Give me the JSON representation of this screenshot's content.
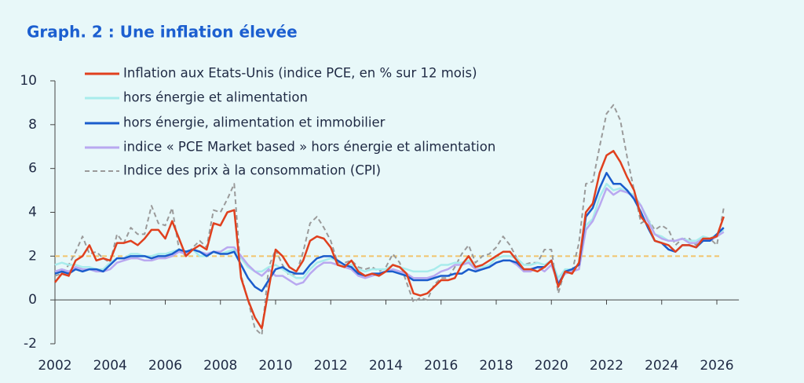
{
  "chart_data": {
    "type": "line",
    "title": "Graph. 2 : Une inflation élevée",
    "x": [
      2002,
      2002.25,
      2002.5,
      2002.75,
      2003,
      2003.25,
      2003.5,
      2003.75,
      2004,
      2004.25,
      2004.5,
      2004.75,
      2005,
      2005.25,
      2005.5,
      2005.75,
      2006,
      2006.25,
      2006.5,
      2006.75,
      2007,
      2007.25,
      2007.5,
      2007.75,
      2008,
      2008.25,
      2008.5,
      2008.75,
      2009,
      2009.25,
      2009.5,
      2009.75,
      2010,
      2010.25,
      2010.5,
      2010.75,
      2011,
      2011.25,
      2011.5,
      2011.75,
      2012,
      2012.25,
      2012.5,
      2012.75,
      2013,
      2013.25,
      2013.5,
      2013.75,
      2014,
      2014.25,
      2014.5,
      2014.75,
      2015,
      2015.25,
      2015.5,
      2015.75,
      2016,
      2016.25,
      2016.5,
      2016.75,
      2017,
      2017.25,
      2017.5,
      2017.75,
      2018,
      2018.25,
      2018.5,
      2018.75,
      2019,
      2019.25,
      2019.5,
      2019.75,
      2020,
      2020.25,
      2020.5,
      2020.75,
      2021,
      2021.25,
      2021.5,
      2021.75,
      2022,
      2022.25,
      2022.5,
      2022.75,
      2023,
      2023.25,
      2023.5,
      2023.75,
      2024,
      2024.25,
      2024.5,
      2024.75,
      2025,
      2025.25,
      2025.5,
      2025.75,
      2026,
      2026.25
    ],
    "series": [
      {
        "name": "Inflation aux Etats-Unis (indice PCE, en % sur 12 mois)",
        "color": "#e0401e",
        "width": 2.5,
        "values": [
          0.8,
          1.2,
          1.1,
          1.8,
          2.0,
          2.5,
          1.8,
          1.9,
          1.8,
          2.6,
          2.6,
          2.7,
          2.5,
          2.8,
          3.2,
          3.2,
          2.8,
          3.6,
          2.8,
          2.0,
          2.3,
          2.5,
          2.3,
          3.5,
          3.4,
          4.0,
          4.1,
          1.0,
          0.0,
          -0.8,
          -1.3,
          0.5,
          2.3,
          2.0,
          1.5,
          1.3,
          1.8,
          2.7,
          2.9,
          2.8,
          2.4,
          1.6,
          1.5,
          1.8,
          1.3,
          1.1,
          1.2,
          1.1,
          1.3,
          1.6,
          1.5,
          1.2,
          0.3,
          0.2,
          0.3,
          0.6,
          0.9,
          0.9,
          1.0,
          1.6,
          2.0,
          1.5,
          1.6,
          1.8,
          2.0,
          2.2,
          2.2,
          1.8,
          1.4,
          1.4,
          1.3,
          1.5,
          1.8,
          0.6,
          1.3,
          1.2,
          1.7,
          4.0,
          4.4,
          5.8,
          6.6,
          6.8,
          6.3,
          5.6,
          5.0,
          3.8,
          3.4,
          2.7,
          2.6,
          2.5,
          2.2,
          2.5,
          2.5,
          2.4,
          2.8,
          2.8,
          2.9,
          3.8
        ]
      },
      {
        "name": "hors énergie et alimentation",
        "color": "#a8ecec",
        "width": 2.5,
        "values": [
          1.6,
          1.7,
          1.6,
          1.6,
          1.5,
          1.5,
          1.4,
          1.4,
          1.7,
          1.9,
          1.9,
          2.1,
          2.1,
          2.0,
          2.0,
          2.1,
          2.1,
          2.2,
          2.3,
          2.2,
          2.3,
          2.0,
          2.0,
          2.2,
          2.1,
          2.2,
          2.3,
          1.9,
          1.5,
          1.3,
          1.3,
          1.5,
          1.6,
          1.4,
          1.2,
          1.0,
          1.0,
          1.4,
          1.7,
          1.8,
          1.9,
          1.8,
          1.6,
          1.6,
          1.4,
          1.3,
          1.4,
          1.4,
          1.4,
          1.6,
          1.5,
          1.4,
          1.3,
          1.3,
          1.3,
          1.4,
          1.6,
          1.6,
          1.7,
          1.7,
          1.8,
          1.5,
          1.5,
          1.6,
          1.9,
          2.0,
          2.0,
          1.9,
          1.6,
          1.6,
          1.7,
          1.6,
          1.8,
          1.0,
          1.4,
          1.4,
          1.6,
          3.4,
          3.7,
          4.7,
          5.3,
          5.0,
          5.1,
          4.9,
          4.8,
          4.3,
          3.7,
          3.0,
          2.9,
          2.7,
          2.7,
          2.8,
          2.7,
          2.7,
          2.9,
          2.8,
          3.0,
          3.2
        ]
      },
      {
        "name": "hors énergie, alimentation et immobilier",
        "color": "#1a5ccc",
        "width": 2.5,
        "values": [
          1.2,
          1.3,
          1.2,
          1.4,
          1.3,
          1.4,
          1.4,
          1.3,
          1.6,
          1.9,
          1.9,
          2.0,
          2.0,
          2.0,
          1.9,
          2.0,
          2.0,
          2.1,
          2.3,
          2.2,
          2.3,
          2.2,
          2.0,
          2.2,
          2.1,
          2.1,
          2.2,
          1.6,
          1.0,
          0.6,
          0.4,
          0.9,
          1.4,
          1.5,
          1.3,
          1.2,
          1.2,
          1.6,
          1.9,
          2.0,
          2.0,
          1.8,
          1.6,
          1.5,
          1.2,
          1.1,
          1.2,
          1.2,
          1.3,
          1.3,
          1.2,
          1.1,
          0.9,
          0.9,
          0.9,
          1.0,
          1.1,
          1.1,
          1.2,
          1.2,
          1.4,
          1.3,
          1.4,
          1.5,
          1.7,
          1.8,
          1.8,
          1.7,
          1.4,
          1.4,
          1.5,
          1.5,
          1.8,
          0.7,
          1.3,
          1.4,
          1.6,
          3.8,
          4.2,
          5.1,
          5.8,
          5.3,
          5.3,
          5.0,
          4.6,
          4.0,
          3.3,
          2.7,
          2.6,
          2.3,
          2.2,
          2.5,
          2.5,
          2.4,
          2.7,
          2.7,
          3.0,
          3.3
        ]
      },
      {
        "name": "indice « PCE Market based » hors énergie et alimentation",
        "color": "#b9a8f0",
        "width": 2.5,
        "values": [
          1.3,
          1.4,
          1.3,
          1.5,
          1.4,
          1.4,
          1.3,
          1.3,
          1.4,
          1.7,
          1.8,
          1.9,
          1.9,
          1.8,
          1.8,
          1.9,
          1.9,
          2.0,
          2.2,
          2.1,
          2.3,
          2.2,
          2.1,
          2.2,
          2.2,
          2.4,
          2.4,
          2.0,
          1.6,
          1.3,
          1.1,
          1.4,
          1.1,
          1.1,
          0.9,
          0.7,
          0.8,
          1.2,
          1.5,
          1.7,
          1.7,
          1.6,
          1.5,
          1.4,
          1.1,
          1.0,
          1.1,
          1.2,
          1.3,
          1.4,
          1.3,
          1.2,
          1.0,
          1.0,
          1.0,
          1.1,
          1.3,
          1.4,
          1.6,
          1.6,
          1.7,
          1.4,
          1.4,
          1.5,
          1.7,
          1.8,
          1.8,
          1.6,
          1.3,
          1.3,
          1.5,
          1.3,
          1.6,
          0.8,
          1.2,
          1.3,
          1.4,
          3.2,
          3.6,
          4.3,
          5.1,
          4.8,
          5.0,
          4.9,
          4.7,
          4.3,
          3.6,
          3.0,
          2.8,
          2.7,
          2.7,
          2.8,
          2.6,
          2.6,
          2.8,
          2.7,
          2.9,
          3.1
        ]
      },
      {
        "name": "Indice des prix à la consommation (CPI)",
        "color": "#9a9a9a",
        "width": 2,
        "dash": true,
        "values": [
          1.1,
          1.2,
          1.6,
          2.2,
          2.9,
          2.1,
          2.2,
          1.9,
          1.7,
          3.0,
          2.6,
          3.3,
          3.0,
          3.0,
          4.3,
          3.5,
          3.4,
          4.2,
          2.3,
          2.0,
          2.4,
          2.7,
          2.4,
          4.1,
          4.0,
          4.6,
          5.3,
          1.1,
          0.0,
          -1.3,
          -1.6,
          1.5,
          2.3,
          1.6,
          1.1,
          1.2,
          2.2,
          3.5,
          3.8,
          3.3,
          2.7,
          1.7,
          1.7,
          1.8,
          1.5,
          1.4,
          1.5,
          1.3,
          1.5,
          2.1,
          1.7,
          0.8,
          -0.1,
          0.1,
          0.0,
          0.7,
          1.0,
          1.0,
          1.5,
          2.1,
          2.5,
          1.7,
          2.0,
          2.1,
          2.4,
          2.9,
          2.5,
          1.9,
          1.6,
          1.7,
          1.7,
          2.3,
          2.3,
          0.3,
          1.4,
          1.3,
          2.6,
          5.3,
          5.4,
          7.0,
          8.5,
          8.9,
          8.2,
          6.5,
          5.0,
          3.5,
          3.7,
          3.2,
          3.4,
          3.2,
          2.5,
          2.8,
          2.8,
          2.5,
          2.9,
          2.8,
          2.5,
          4.2
        ]
      }
    ],
    "hline": {
      "value": 2,
      "color": "#f2c46b"
    },
    "xlim": [
      2002,
      2026.8
    ],
    "ylim": [
      -2,
      10
    ],
    "xticks": [
      2002,
      2004,
      2006,
      2008,
      2010,
      2012,
      2014,
      2016,
      2018,
      2020,
      2022,
      2024,
      2026
    ],
    "yticks": [
      -2,
      0,
      2,
      4,
      6,
      8,
      10
    ],
    "legend": "upper-left",
    "grid": false
  }
}
